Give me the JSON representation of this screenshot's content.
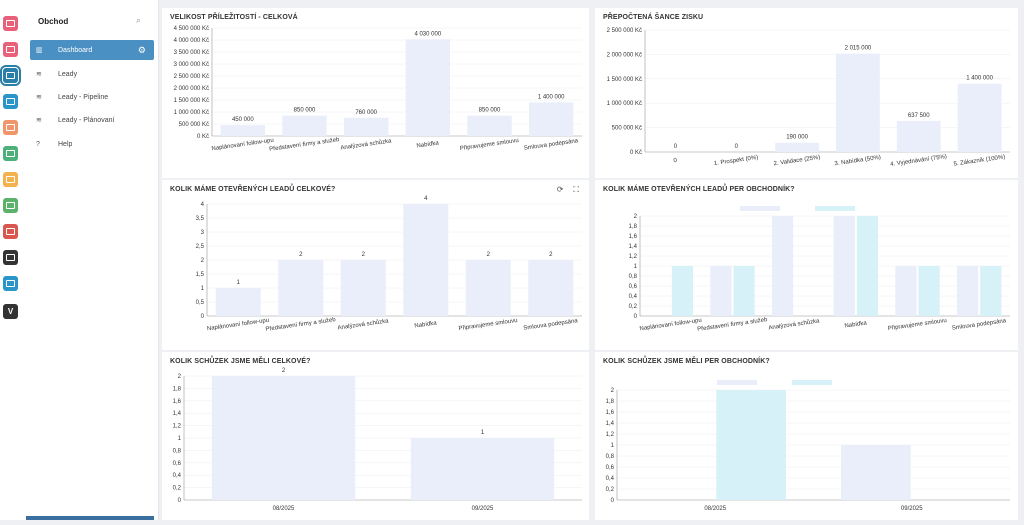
{
  "rail": [
    {
      "icon": "calendar-icon",
      "color": "#e8607a"
    },
    {
      "icon": "card-icon",
      "color": "#e8607a"
    },
    {
      "icon": "handshake-icon",
      "color": "#2a7fa8",
      "active": true
    },
    {
      "icon": "group-icon",
      "color": "#2a95c9"
    },
    {
      "icon": "people-icon",
      "color": "#f0966c"
    },
    {
      "icon": "money-icon",
      "color": "#4db07a"
    },
    {
      "icon": "contacts-icon",
      "color": "#f4b24e"
    },
    {
      "icon": "building-icon",
      "color": "#5bb26a"
    },
    {
      "icon": "settings-icon",
      "color": "#d9574f"
    },
    {
      "icon": "database-icon",
      "color": "#333333"
    },
    {
      "icon": "document-icon",
      "color": "#2a95c9"
    },
    {
      "icon": "letter-v-icon",
      "color": "#333333",
      "label": "V"
    }
  ],
  "sidebar": {
    "title": "Obchod",
    "items": [
      {
        "label": "Dashboard",
        "icon": "chart-icon",
        "glyph": "▥",
        "active": true
      },
      {
        "label": "Leady",
        "icon": "handshake-icon",
        "glyph": "≋"
      },
      {
        "label": "Leady - Pipeline",
        "icon": "handshake-icon",
        "glyph": "≋"
      },
      {
        "label": "Leady - Plánovaní",
        "icon": "handshake-icon",
        "glyph": "≋"
      },
      {
        "label": "Help",
        "icon": "help-icon",
        "glyph": "?"
      }
    ]
  },
  "colors": {
    "bar": "#eaeefb",
    "bar2": "#d6f2f8",
    "axis": "#999999",
    "grid": "#eeeeee"
  },
  "panels": [
    {
      "id": "velikost",
      "title": "VELIKOST PŘÍLEŽITOSTÍ - CELKOVÁ",
      "tools": false
    },
    {
      "id": "prepoctena",
      "title": "PŘEPOČTENÁ ŠANCE ZISKU",
      "tools": false
    },
    {
      "id": "leady-celkove",
      "title": "KOLIK MÁME OTEVŘENÝCH LEADŮ CELKOVÉ?",
      "tools": true
    },
    {
      "id": "leady-obchodnik",
      "title": "KOLIK MÁME OTEVŘENÝCH LEADŮ PER OBCHODNÍK?",
      "tools": false
    },
    {
      "id": "schuzky-celkove",
      "title": "KOLIK SCHŮZEK JSME MĚLI CELKOVÉ?",
      "tools": false
    },
    {
      "id": "schuzky-obchodnik",
      "title": "KOLIK SCHŮZEK JSME MĚLI PER OBCHODNÍK?",
      "tools": false
    }
  ],
  "chart_data": [
    {
      "type": "bar",
      "title": "VELIKOST PŘÍLEŽITOSTÍ - CELKOVÁ",
      "categories": [
        "Naplánovaní follow-upu",
        "Představení firmy a služeb",
        "Analýzová schůzka",
        "Nabídka",
        "Připravujeme smlouvu",
        "Smlouva podepsána"
      ],
      "values": [
        450000,
        850000,
        760000,
        4030000,
        850000,
        1400000
      ],
      "labels": [
        "450 000",
        "850 000",
        "760 000",
        "4 030 000",
        "850 000",
        "1 400 000"
      ],
      "ylim": [
        0,
        4500000
      ],
      "yticks": [
        "0 Kč",
        "500 000 Kč",
        "1 000 000 Kč",
        "1 500 000 Kč",
        "2 000 000 Kč",
        "2 500 000 Kč",
        "3 000 000 Kč",
        "3 500 000 Kč",
        "4 000 000 Kč",
        "4 500 000 Kč"
      ]
    },
    {
      "type": "bar",
      "title": "PŘEPOČTENÁ ŠANCE ZISKU",
      "categories": [
        "0",
        "1. Prospekt (0%)",
        "2. Validace (25%)",
        "3. Nabídka (50%)",
        "4. Vyjednávání (75%)",
        "5. Zákazník (100%)"
      ],
      "values": [
        0,
        0,
        190000,
        2015000,
        637500,
        1400000
      ],
      "labels": [
        "0",
        "0",
        "190 000",
        "2 015 000",
        "637 500",
        "1 400 000"
      ],
      "ylim": [
        0,
        2500000
      ],
      "yticks": [
        "0 Kč",
        "500 000 Kč",
        "1 000 000 Kč",
        "1 500 000 Kč",
        "2 000 000 Kč",
        "2 500 000 Kč"
      ]
    },
    {
      "type": "bar",
      "title": "KOLIK MÁME OTEVŘENÝCH LEADŮ CELKOVÉ?",
      "categories": [
        "Naplánovaní follow-upu",
        "Představení firmy a služeb",
        "Analýzová schůzka",
        "Nabídka",
        "Připravujeme smlouvu",
        "Smlouva podepsána"
      ],
      "values": [
        1,
        2,
        2,
        4,
        2,
        2
      ],
      "labels": [
        "1",
        "2",
        "2",
        "4",
        "2",
        "2"
      ],
      "ylim": [
        0,
        4
      ],
      "yticks": [
        "0",
        "0,5",
        "1",
        "1,5",
        "2",
        "2,5",
        "3",
        "3,5",
        "4"
      ]
    },
    {
      "type": "bar",
      "title": "KOLIK MÁME OTEVŘENÝCH LEADŮ PER OBCHODNÍK?",
      "categories": [
        "Naplánovaní follow-upu",
        "Představení firmy a služeb",
        "Analýzová schůzka",
        "Nabídka",
        "Připravujeme smlouvu",
        "Smlouva podepsána"
      ],
      "series": [
        {
          "values": [
            0,
            1,
            2,
            2,
            1,
            1
          ]
        },
        {
          "values": [
            1,
            1,
            0,
            2,
            1,
            1
          ]
        }
      ],
      "ylim": [
        0,
        2
      ],
      "yticks": [
        "0",
        "0,2",
        "0,4",
        "0,6",
        "0,8",
        "1",
        "1,2",
        "1,4",
        "1,6",
        "1,8",
        "2"
      ]
    },
    {
      "type": "bar",
      "title": "KOLIK SCHŮZEK JSME MĚLI CELKOVÉ?",
      "categories": [
        "08/2025",
        "09/2025"
      ],
      "values": [
        2,
        1
      ],
      "labels": [
        "2",
        "1"
      ],
      "ylim": [
        0,
        2
      ],
      "yticks": [
        "0",
        "0,2",
        "0,4",
        "0,6",
        "0,8",
        "1",
        "1,2",
        "1,4",
        "1,6",
        "1,8",
        "2"
      ]
    },
    {
      "type": "bar",
      "title": "KOLIK SCHŮZEK JSME MĚLI PER OBCHODNÍK?",
      "categories": [
        "08/2025",
        "09/2025"
      ],
      "series": [
        {
          "values": [
            0,
            1
          ]
        },
        {
          "values": [
            2,
            0
          ]
        }
      ],
      "ylim": [
        0,
        2
      ],
      "yticks": [
        "0",
        "0,2",
        "0,4",
        "0,6",
        "0,8",
        "1",
        "1,2",
        "1,4",
        "1,6",
        "1,8",
        "2"
      ]
    }
  ]
}
